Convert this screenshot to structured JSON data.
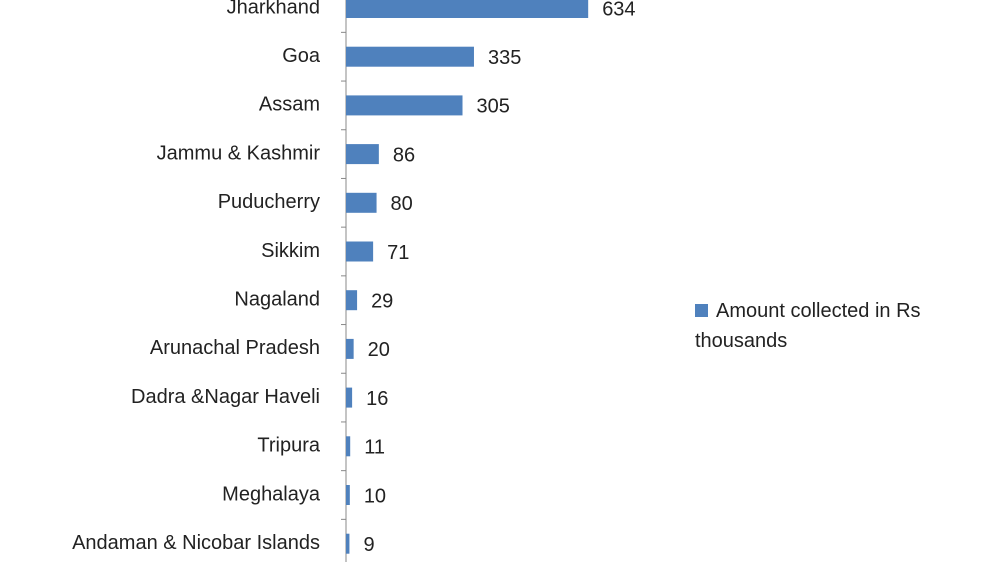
{
  "chart_data": {
    "type": "bar",
    "orientation": "horizontal",
    "categories": [
      "Jharkhand",
      "Goa",
      "Assam",
      "Jammu & Kashmir",
      "Puducherry",
      "Sikkim",
      "Nagaland",
      "Arunachal Pradesh",
      "Dadra &Nagar Haveli",
      "Tripura",
      "Meghalaya",
      "Andaman & Nicobar Islands"
    ],
    "series": [
      {
        "name": "Amount collected in Rs thousands",
        "color": "#4f81bd",
        "values": [
          634,
          335,
          305,
          86,
          80,
          71,
          29,
          20,
          16,
          11,
          10,
          9
        ]
      }
    ],
    "xlim": [
      0,
      700
    ],
    "legend": "right"
  }
}
